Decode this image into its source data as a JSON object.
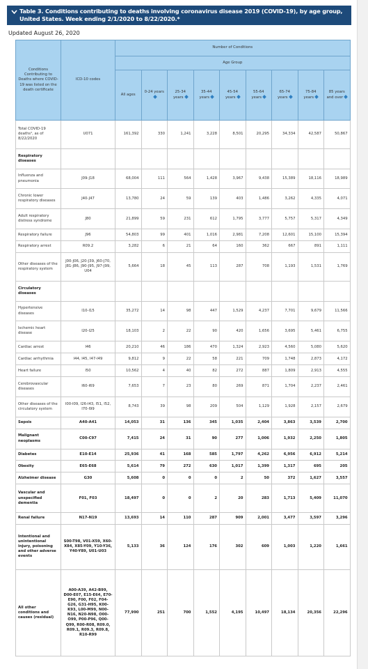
{
  "header": {
    "title": "Table 3. Conditions contributing to deaths involving coronavirus disease 2019 (COVID-19), by age group, United States. Week ending 2/1/2020 to 8/22/2020.*",
    "updated": "Updated August 26, 2020"
  },
  "table": {
    "group_header": "Number of Conditions",
    "subgroup_header": "Age Group",
    "columns": [
      "Conditions Contributing to Deaths where COVID-19 was listed on the death certificate",
      "ICD-10 codes",
      "All ages",
      "0-24 years",
      "25-34 years",
      "35-44 years",
      "45-54 years",
      "55-64 years",
      "65-74 years",
      "75-84 years",
      "85 years and over"
    ],
    "rows": [
      [
        "Total COVID-19 deaths¹, as of 8/22/2020",
        "U071",
        "161,392",
        "330",
        "1,241",
        "3,228",
        "8,501",
        "20,295",
        "34,334",
        "42,587",
        "50,867"
      ],
      [
        "Respiratory diseases"
      ],
      [
        "Influenza and pneumonia",
        "J09-J18",
        "68,004",
        "111",
        "564",
        "1,428",
        "3,967",
        "9,438",
        "15,389",
        "18,116",
        "18,989"
      ],
      [
        "Chronic lower respiratory diseases",
        "J40-J47",
        "13,780",
        "24",
        "59",
        "139",
        "403",
        "1,486",
        "3,262",
        "4,335",
        "4,071"
      ],
      [
        "Adult respiratory distress syndrome",
        "J80",
        "21,899",
        "59",
        "231",
        "612",
        "1,795",
        "3,777",
        "5,757",
        "5,317",
        "4,349"
      ],
      [
        "Respiratory failure",
        "J96",
        "54,803",
        "99",
        "401",
        "1,016",
        "2,981",
        "7,208",
        "12,601",
        "15,100",
        "15,394"
      ],
      [
        "Respiratory arrest",
        "R09.2",
        "3,282",
        "6",
        "21",
        "64",
        "160",
        "362",
        "667",
        "891",
        "1,111"
      ],
      [
        "Other diseases of the respiratory system",
        "J00-J06, J20-J39, J60-J70, J81-J86, J90-J95, J97-J99, U04",
        "5,664",
        "18",
        "45",
        "113",
        "287",
        "708",
        "1,193",
        "1,531",
        "1,769"
      ],
      [
        "Circulatory diseases"
      ],
      [
        "Hypertensive diseases",
        "I10-I15",
        "35,272",
        "14",
        "98",
        "447",
        "1,529",
        "4,237",
        "7,701",
        "9,679",
        "11,566"
      ],
      [
        "Ischemic heart disease",
        "I20-I25",
        "18,103",
        "2",
        "22",
        "90",
        "420",
        "1,656",
        "3,695",
        "5,461",
        "6,755"
      ],
      [
        "Cardiac arrest",
        "I46",
        "20,210",
        "46",
        "186",
        "470",
        "1,324",
        "2,923",
        "4,560",
        "5,080",
        "5,620"
      ],
      [
        "Cardiac arrhythmia",
        "I44, I45, I47-I49",
        "9,812",
        "9",
        "22",
        "58",
        "221",
        "709",
        "1,748",
        "2,873",
        "4,172"
      ],
      [
        "Heart failure",
        "I50",
        "10,562",
        "4",
        "40",
        "82",
        "272",
        "887",
        "1,809",
        "2,913",
        "4,555"
      ],
      [
        "Cerebrovascular diseases",
        "I60-I69",
        "7,653",
        "7",
        "23",
        "80",
        "269",
        "871",
        "1,704",
        "2,237",
        "2,461"
      ],
      [
        "Other diseases of the circulatory system",
        "I00-I09, I26-I43, I51, I52, I70-I99",
        "8,743",
        "39",
        "98",
        "209",
        "504",
        "1,129",
        "1,928",
        "2,157",
        "2,679"
      ],
      [
        "Sepsis",
        "A40-A41",
        "14,053",
        "31",
        "136",
        "345",
        "1,035",
        "2,404",
        "3,863",
        "3,539",
        "2,700"
      ],
      [
        "Malignant neoplasms",
        "C00-C97",
        "7,415",
        "24",
        "31",
        "90",
        "277",
        "1,006",
        "1,932",
        "2,250",
        "1,805"
      ],
      [
        "Diabetes",
        "E10-E14",
        "25,936",
        "41",
        "168",
        "585",
        "1,797",
        "4,262",
        "6,956",
        "6,912",
        "5,214"
      ],
      [
        "Obesity",
        "E65-E68",
        "5,614",
        "79",
        "272",
        "630",
        "1,017",
        "1,399",
        "1,317",
        "695",
        "205"
      ],
      [
        "Alzheimer disease",
        "G30",
        "5,608",
        "0",
        "0",
        "0",
        "2",
        "50",
        "372",
        "1,627",
        "3,557"
      ],
      [
        "Vascular and unspecified dementia",
        "F01, F03",
        "18,497",
        "0",
        "0",
        "2",
        "20",
        "283",
        "1,713",
        "5,409",
        "11,070"
      ],
      [
        "Renal failure",
        "N17-N19",
        "13,693",
        "14",
        "110",
        "287",
        "909",
        "2,001",
        "3,477",
        "3,597",
        "3,296"
      ],
      [
        "Intentional and unintentional injury, poisoning and other adverse events",
        "S00-T98, V01-X59, X60-X84, X85-Y09, Y10-Y36, Y40-Y89, U01-U03",
        "5,133",
        "36",
        "124",
        "176",
        "302",
        "609",
        "1,003",
        "1,220",
        "1,661"
      ],
      [
        "All other conditions and causes (residual)",
        "A00-A39, A42-B99, D00-E07, E15-E64, E70-E90, F00, F02, F04-G26, G31-H95, K00-K93, L00-M99, N00-N16, N20-N98, O00-O99, P00-P96, Q00-Q99, R00-R08, R09.0, R09.1, R09.3, R09.8, R10-R99",
        "77,990",
        "251",
        "700",
        "1,552",
        "4,195",
        "10,497",
        "18,134",
        "20,356",
        "22,296"
      ]
    ]
  }
}
